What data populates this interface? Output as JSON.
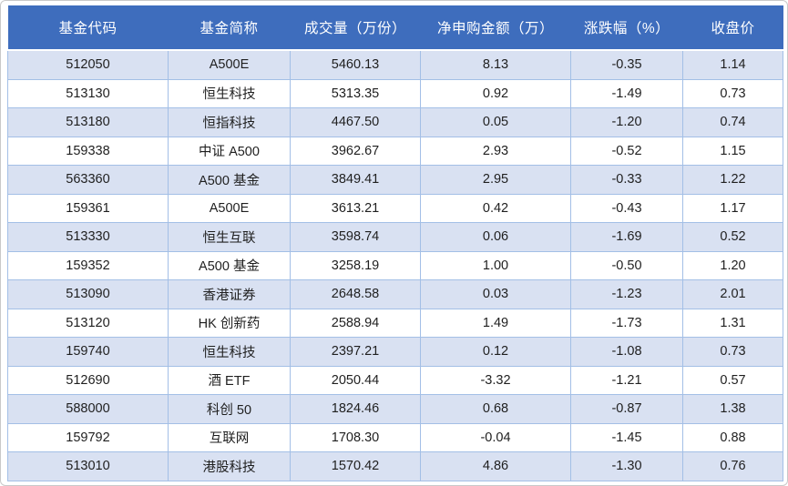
{
  "chart_data": {
    "type": "table",
    "columns": [
      "基金代码",
      "基金简称",
      "成交量（万份）",
      "净申购金额（万）",
      "涨跌幅（%）",
      "收盘价"
    ],
    "rows": [
      [
        "512050",
        "A500E",
        "5460.13",
        "8.13",
        "-0.35",
        "1.14"
      ],
      [
        "513130",
        "恒生科技",
        "5313.35",
        "0.92",
        "-1.49",
        "0.73"
      ],
      [
        "513180",
        "恒指科技",
        "4467.50",
        "0.05",
        "-1.20",
        "0.74"
      ],
      [
        "159338",
        "中证 A500",
        "3962.67",
        "2.93",
        "-0.52",
        "1.15"
      ],
      [
        "563360",
        "A500 基金",
        "3849.41",
        "2.95",
        "-0.33",
        "1.22"
      ],
      [
        "159361",
        "A500E",
        "3613.21",
        "0.42",
        "-0.43",
        "1.17"
      ],
      [
        "513330",
        "恒生互联",
        "3598.74",
        "0.06",
        "-1.69",
        "0.52"
      ],
      [
        "159352",
        "A500 基金",
        "3258.19",
        "1.00",
        "-0.50",
        "1.20"
      ],
      [
        "513090",
        "香港证券",
        "2648.58",
        "0.03",
        "-1.23",
        "2.01"
      ],
      [
        "513120",
        "HK 创新药",
        "2588.94",
        "1.49",
        "-1.73",
        "1.31"
      ],
      [
        "159740",
        "恒生科技",
        "2397.21",
        "0.12",
        "-1.08",
        "0.73"
      ],
      [
        "512690",
        "酒 ETF",
        "2050.44",
        "-3.32",
        "-1.21",
        "0.57"
      ],
      [
        "588000",
        "科创 50",
        "1824.46",
        "0.68",
        "-0.87",
        "1.38"
      ],
      [
        "159792",
        "互联网",
        "1708.30",
        "-0.04",
        "-1.45",
        "0.88"
      ],
      [
        "513010",
        "港股科技",
        "1570.42",
        "4.86",
        "-1.30",
        "0.76"
      ]
    ],
    "layout": {
      "banding": "alternate rows light blue starting with first data row",
      "grid": true,
      "alignment": "center"
    }
  },
  "colors": {
    "header_bg": "#3e6dbd",
    "header_text": "#ffffff",
    "band_bg": "#d9e1f2",
    "row_bg": "#ffffff",
    "grid_border": "#a3bfe6",
    "body_text": "#1f1f1f"
  }
}
